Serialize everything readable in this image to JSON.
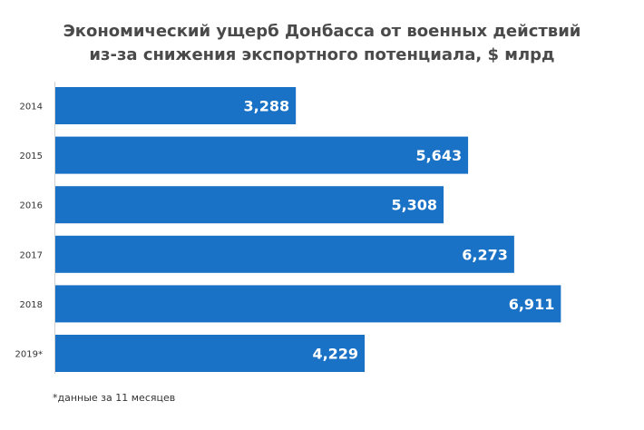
{
  "chart_data": {
    "type": "bar",
    "orientation": "horizontal",
    "title_lines": [
      "Экономический  ущерб Донбасса от военных действий",
      "из-за снижения экспортного  потенциала, $ млрд"
    ],
    "categories": [
      "2014",
      "2015",
      "2016",
      "2017",
      "2018",
      "2019*"
    ],
    "values": [
      3.288,
      5.643,
      5.308,
      6.273,
      6.911,
      4.229
    ],
    "data_labels": [
      "3,288",
      "5,643",
      "5,308",
      "6,273",
      "6,911",
      "4,229"
    ],
    "xlim": [
      0,
      8.06
    ],
    "bar_color": "#1a72c6",
    "label_color": "#ffffff",
    "grid": false,
    "legend": "none",
    "footnote": "*данные за 11 месяцев"
  }
}
